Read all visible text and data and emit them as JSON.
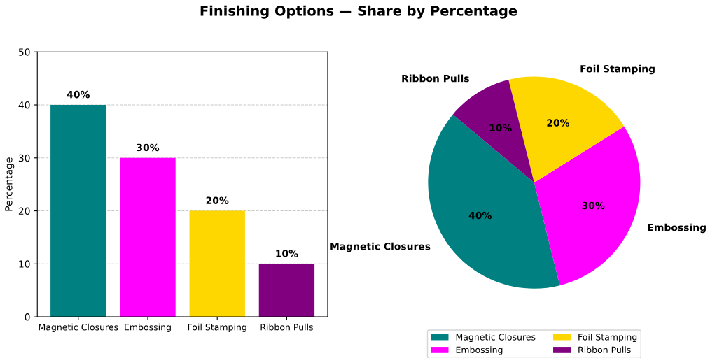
{
  "chart_data": [
    {
      "type": "bar",
      "title": "Finishing Options — Share by Percentage",
      "ylabel": "Percentage",
      "categories": [
        "Magnetic Closures",
        "Embossing",
        "Foil Stamping",
        "Ribbon Pulls"
      ],
      "values": [
        40,
        30,
        20,
        10
      ],
      "colors": [
        "#008080",
        "#ff00ff",
        "#ffd700",
        "#800080"
      ],
      "value_labels": [
        "40%",
        "30%",
        "20%",
        "10%"
      ],
      "ylim": [
        0,
        50
      ],
      "yticks": [
        0,
        10,
        20,
        30,
        40,
        50
      ],
      "grid": "y",
      "legend": false
    },
    {
      "type": "pie",
      "categories": [
        "Magnetic Closures",
        "Embossing",
        "Foil Stamping",
        "Ribbon Pulls"
      ],
      "values": [
        40,
        30,
        20,
        10
      ],
      "colors": [
        "#008080",
        "#ff00ff",
        "#ffd700",
        "#800080"
      ],
      "value_labels": [
        "40%",
        "30%",
        "20%",
        "10%"
      ],
      "legend": "bottom"
    }
  ]
}
